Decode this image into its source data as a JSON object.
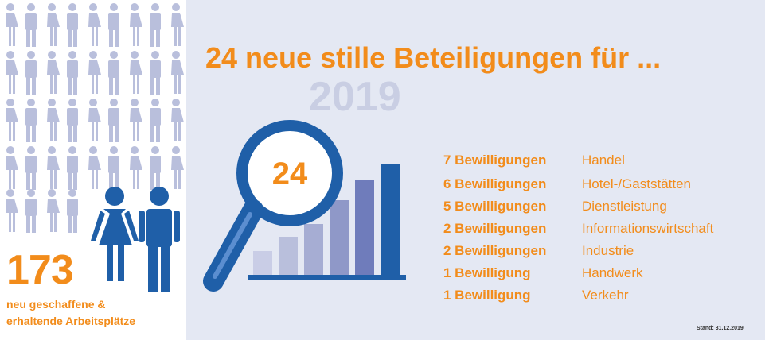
{
  "headline": "24 neue stille Beteiligungen für ...",
  "year": "2019",
  "magnifier_number": "24",
  "jobs": {
    "number": "173",
    "label_line1": "neu geschaffene &",
    "label_line2": "erhaltende Arbeitsplätze"
  },
  "approvals": [
    {
      "count_label": "7 Bewilligungen",
      "category": "Handel"
    },
    {
      "count_label": "6 Bewilligungen",
      "category": "Hotel-/Gaststätten"
    },
    {
      "count_label": "5 Bewilligungen",
      "category": "Dienstleistung"
    },
    {
      "count_label": "2 Bewilligungen",
      "category": "Informationswirtschaft"
    },
    {
      "count_label": "2 Bewilligungen",
      "category": "Industrie"
    },
    {
      "count_label": "1 Bewilligung",
      "category": "Handwerk"
    },
    {
      "count_label": "1 Bewilligung",
      "category": "Verkehr"
    }
  ],
  "stand": "Stand: 31.12.2019",
  "colors": {
    "accent": "#f28c1b",
    "figure_light": "#b9bfdc",
    "figure_dark": "#1f5fa8",
    "background": "#e4e8f3"
  },
  "icons": [
    "person-icon",
    "magnifier-icon",
    "bar-chart-icon"
  ]
}
